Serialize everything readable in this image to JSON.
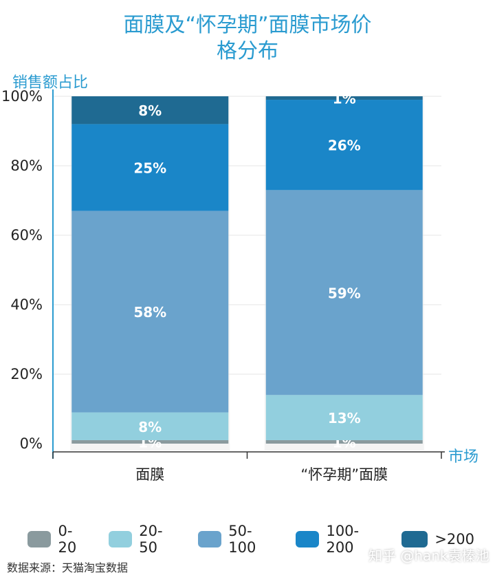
{
  "chart_data": {
    "type": "bar",
    "stacked": true,
    "title_lines": [
      "面膜及“怀孕期”面膜市场价",
      "格分布"
    ],
    "ylabel": "销售额占比",
    "xlabel": "市场",
    "categories": [
      "面膜",
      "“怀孕期”面膜"
    ],
    "ylim": [
      0,
      100
    ],
    "yticks": [
      "0%",
      "20%",
      "40%",
      "60%",
      "80%",
      "100%"
    ],
    "series": [
      {
        "name": "0-20",
        "color": "#8a9a9e",
        "values": [
          1,
          1
        ],
        "labels": [
          "1%",
          "1%"
        ]
      },
      {
        "name": "20-50",
        "color": "#92cfde",
        "values": [
          8,
          13
        ],
        "labels": [
          "8%",
          "13%"
        ]
      },
      {
        "name": "50-100",
        "color": "#6aa3cc",
        "values": [
          58,
          59
        ],
        "labels": [
          "58%",
          "59%"
        ]
      },
      {
        "name": "100-200",
        "color": "#1a86c8",
        "values": [
          25,
          26
        ],
        "labels": [
          "25%",
          "26%"
        ]
      },
      {
        "name": ">200",
        "color": "#1f6a92",
        "values": [
          8,
          1
        ],
        "labels": [
          "8%",
          "1%"
        ]
      }
    ],
    "legend_position": "bottom",
    "grid": true
  },
  "source_text": "数据来源：天猫淘宝数据",
  "watermark_text": "知乎 @hank袁榛池"
}
